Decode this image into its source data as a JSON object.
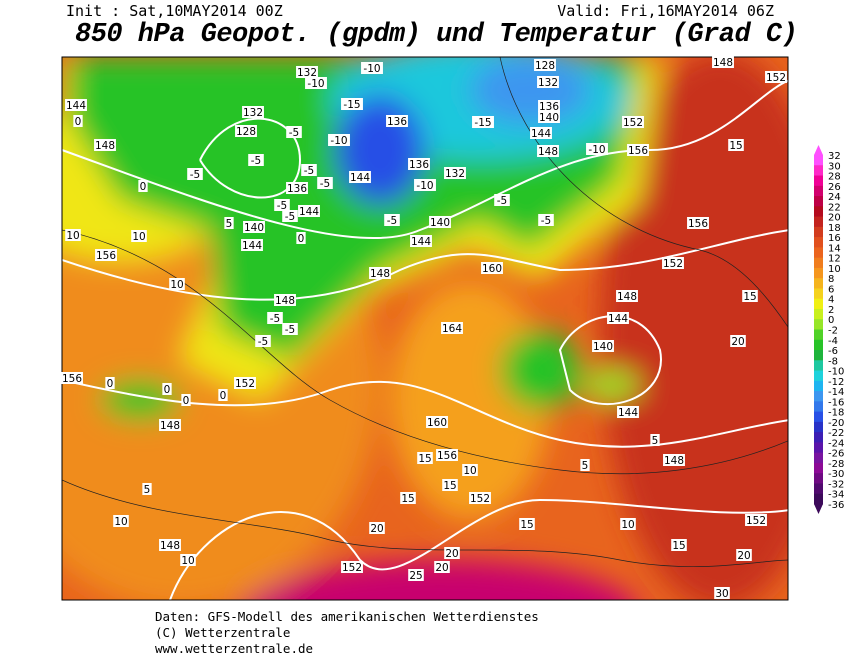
{
  "header": {
    "init": "Init : Sat,10MAY2014 00Z",
    "valid": "Valid: Fri,16MAY2014 06Z",
    "title": "850 hPa Geopot. (gpdm) und Temperatur (Grad C)"
  },
  "map": {
    "contour_labels": [
      "132",
      "-10",
      "-10",
      "128",
      "132",
      "148",
      "152",
      "144",
      "0",
      "132",
      "-15",
      "136",
      "-15",
      "136",
      "140",
      "152",
      "128",
      "144",
      "-5",
      "148",
      "-5",
      "-10",
      "148",
      "-10",
      "156",
      "15",
      "-5",
      "136",
      "132",
      "-5",
      "0",
      "136",
      "-5",
      "144",
      "-10",
      "-5",
      "-5",
      "-5",
      "144",
      "140",
      "5",
      "-5",
      "140",
      "-5",
      "156",
      "10",
      "10",
      "144",
      "0",
      "144",
      "156",
      "160",
      "152",
      "10",
      "148",
      "148",
      "15",
      "148",
      "-5",
      "-5",
      "-5",
      "144",
      "20",
      "164",
      "140",
      "156",
      "0",
      "0",
      "152",
      "0",
      "0",
      "148",
      "144",
      "160",
      "5",
      "15",
      "156",
      "5",
      "148",
      "10",
      "15",
      "152",
      "5",
      "15",
      "15",
      "10",
      "10",
      "20",
      "152",
      "148",
      "15",
      "20",
      "10",
      "20",
      "152",
      "20",
      "25",
      "30"
    ]
  },
  "legend": {
    "labels": [
      32,
      30,
      28,
      26,
      24,
      22,
      20,
      18,
      16,
      14,
      12,
      10,
      8,
      6,
      4,
      2,
      0,
      -2,
      -4,
      -6,
      -8,
      -10,
      -12,
      -14,
      -16,
      -18,
      -20,
      -22,
      -24,
      -26,
      -28,
      -30,
      -32,
      -34,
      -36
    ],
    "colors": [
      "#ff50ff",
      "#ff28c8",
      "#f00096",
      "#d2006e",
      "#be0046",
      "#b40a1e",
      "#c3231e",
      "#d23c1e",
      "#e1501e",
      "#eb641e",
      "#f07d1e",
      "#f5961e",
      "#f5b41e",
      "#f5d21e",
      "#f0f014",
      "#c8f01e",
      "#96e628",
      "#50d228",
      "#28c328",
      "#1eb43c",
      "#1ec8a0",
      "#1ed2dc",
      "#1eb4f0",
      "#3c96f0",
      "#3278eb",
      "#2850e6",
      "#2832c8",
      "#3c1eb4",
      "#5a14aa",
      "#7814a0",
      "#8c0a96",
      "#6e0a82",
      "#500a6e",
      "#3c0a5a"
    ]
  },
  "footer": [
    "Daten: GFS-Modell des amerikanischen Wetterdienstes",
    "(C) Wetterzentrale",
    "www.wetterzentrale.de"
  ]
}
